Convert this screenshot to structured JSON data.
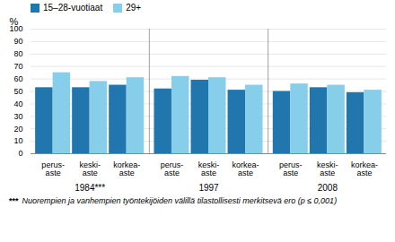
{
  "chart_data": {
    "type": "bar",
    "ylabel": "%",
    "categories": [
      "perus-\naste",
      "keski-\naste",
      "korkea-\naste",
      "perus-\naste",
      "keski-\naste",
      "korkea-\naste",
      "perus-\naste",
      "keski-\naste",
      "korkea-\naste"
    ],
    "group_labels": [
      "1984***",
      "1997",
      "2008"
    ],
    "series": [
      {
        "name": "15–28-vuotiaat",
        "color": "#2176AE",
        "values": [
          53,
          53,
          55,
          52,
          59,
          51,
          50,
          53,
          49
        ]
      },
      {
        "name": "29+",
        "color": "#87CEEB",
        "values": [
          65,
          58,
          61,
          62,
          61,
          55,
          56,
          55,
          51
        ]
      }
    ],
    "ylim": [
      0,
      100
    ],
    "yticks": [
      0,
      10,
      20,
      30,
      40,
      50,
      60,
      70,
      80,
      90,
      100
    ],
    "grid": true,
    "legend": "upper left",
    "footnote": {
      "mark": "***",
      "text": "Nuorempien ja vanhempien työntekijöiden välillä tilastollisesti merkitsevä ero (p ≤ 0,001)"
    }
  }
}
